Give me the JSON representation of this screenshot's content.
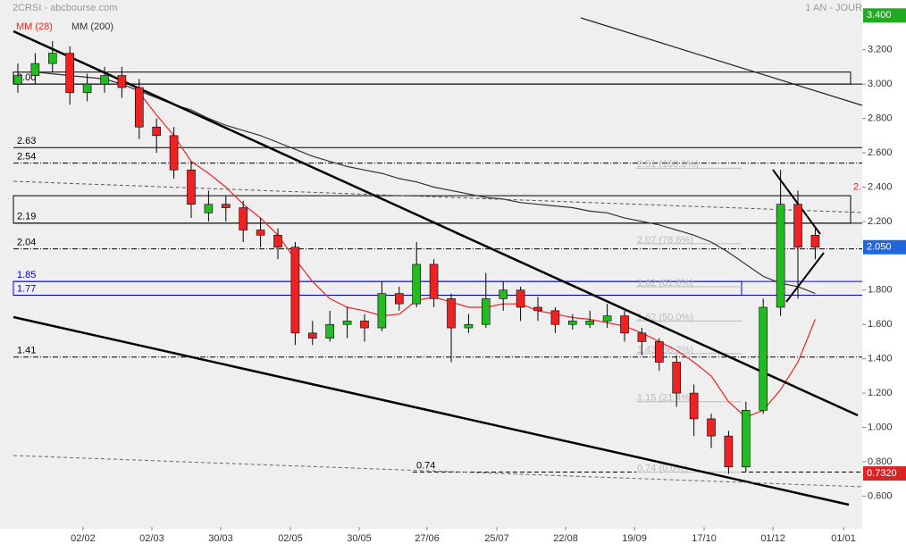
{
  "header": {
    "title": "2CRSI - abcbourse.com",
    "period": "1 AN - JOUR"
  },
  "chart_data": {
    "type": "candlestick",
    "xlim": [
      -1.03,
      48.71
    ],
    "ylim": [
      0.42,
      3.49
    ],
    "xticks": [
      {
        "value": 3.76,
        "label": "02/02"
      },
      {
        "value": 7.73,
        "label": "02/03"
      },
      {
        "value": 11.7,
        "label": "30/03"
      },
      {
        "value": 15.72,
        "label": "02/05"
      },
      {
        "value": 19.69,
        "label": "30/05"
      },
      {
        "value": 23.61,
        "label": "27/06"
      },
      {
        "value": 27.63,
        "label": "25/07"
      },
      {
        "value": 31.6,
        "label": "22/08"
      },
      {
        "value": 35.57,
        "label": "19/09"
      },
      {
        "value": 39.59,
        "label": "17/10"
      },
      {
        "value": 43.56,
        "label": "01/12"
      },
      {
        "value": 47.63,
        "label": "01/01"
      }
    ],
    "yticks": [
      {
        "value": 3.2,
        "label": "3.200"
      },
      {
        "value": 3.0,
        "label": "3.000"
      },
      {
        "value": 2.8,
        "label": "2.800"
      },
      {
        "value": 2.6,
        "label": "2.600"
      },
      {
        "value": 2.4,
        "label": "2.400"
      },
      {
        "value": 2.2,
        "label": "2.200"
      },
      {
        "value": 1.8,
        "label": "1.800"
      },
      {
        "value": 1.6,
        "label": "1.600"
      },
      {
        "value": 1.4,
        "label": "1.400"
      },
      {
        "value": 1.2,
        "label": "1.200"
      },
      {
        "value": 1.0,
        "label": "1.000"
      },
      {
        "value": 0.8,
        "label": "0.800"
      },
      {
        "value": 0.6,
        "label": "0.600"
      }
    ],
    "up_color": "#22bb22",
    "down_color": "#ee2222",
    "open": [
      3.0,
      3.05,
      3.12,
      3.18,
      2.95,
      3.0,
      3.05,
      2.98,
      2.75,
      2.7,
      2.5,
      2.25,
      2.3,
      2.28,
      2.15,
      2.12,
      2.05,
      1.55,
      1.52,
      1.6,
      1.62,
      1.58,
      1.78,
      1.72,
      1.95,
      1.75,
      1.58,
      1.6,
      1.75,
      1.8,
      1.7,
      1.68,
      1.6,
      1.6,
      1.62,
      1.65,
      1.55,
      1.5,
      1.38,
      1.2,
      1.05,
      0.95,
      0.77,
      1.1,
      1.7,
      2.3,
      2.12
    ],
    "high": [
      3.12,
      3.18,
      3.25,
      3.22,
      3.06,
      3.1,
      3.1,
      3.03,
      2.8,
      2.75,
      2.55,
      2.38,
      2.35,
      2.32,
      2.22,
      2.16,
      2.08,
      1.62,
      1.68,
      1.7,
      1.66,
      1.85,
      1.82,
      2.08,
      1.98,
      1.78,
      1.66,
      1.9,
      1.85,
      1.82,
      1.76,
      1.7,
      1.66,
      1.68,
      1.72,
      1.68,
      1.58,
      1.52,
      1.42,
      1.25,
      1.08,
      0.98,
      1.15,
      1.75,
      2.5,
      2.38,
      2.16
    ],
    "low": [
      2.95,
      3.0,
      3.07,
      2.88,
      2.9,
      2.95,
      2.92,
      2.68,
      2.6,
      2.45,
      2.22,
      2.2,
      2.2,
      2.08,
      2.05,
      1.98,
      1.48,
      1.48,
      1.5,
      1.52,
      1.5,
      1.56,
      1.68,
      1.7,
      1.7,
      1.38,
      1.55,
      1.58,
      1.68,
      1.62,
      1.62,
      1.55,
      1.57,
      1.58,
      1.58,
      1.5,
      1.42,
      1.33,
      1.12,
      0.95,
      0.88,
      0.73,
      0.74,
      1.08,
      1.65,
      1.75,
      1.98
    ],
    "close": [
      3.05,
      3.12,
      3.18,
      2.95,
      3.0,
      3.05,
      2.98,
      2.75,
      2.7,
      2.5,
      2.3,
      2.3,
      2.28,
      2.15,
      2.12,
      2.05,
      1.55,
      1.52,
      1.6,
      1.62,
      1.58,
      1.78,
      1.72,
      1.95,
      1.75,
      1.58,
      1.6,
      1.75,
      1.8,
      1.7,
      1.68,
      1.6,
      1.62,
      1.62,
      1.65,
      1.55,
      1.5,
      1.38,
      1.2,
      1.05,
      0.95,
      0.77,
      1.1,
      1.7,
      2.3,
      2.05,
      2.05
    ],
    "series": [
      {
        "name": "MM (28)",
        "color": "#ee2222",
        "values": [
          null,
          null,
          null,
          null,
          null,
          null,
          null,
          2.95,
          2.82,
          2.7,
          2.55,
          2.48,
          2.4,
          2.3,
          2.22,
          2.12,
          1.98,
          1.85,
          1.75,
          1.7,
          1.68,
          1.65,
          1.66,
          1.74,
          1.76,
          1.73,
          1.7,
          1.7,
          1.72,
          1.72,
          1.68,
          1.66,
          1.64,
          1.63,
          1.61,
          1.59,
          1.55,
          1.5,
          1.45,
          1.38,
          1.3,
          1.15,
          1.06,
          1.1,
          1.22,
          1.38,
          1.63
        ]
      },
      {
        "name": "MM (200)",
        "color": "#333333",
        "values": [
          3.07,
          3.07,
          3.06,
          3.05,
          3.04,
          3.03,
          3.0,
          2.96,
          2.92,
          2.88,
          2.85,
          2.8,
          2.76,
          2.73,
          2.7,
          2.66,
          2.62,
          2.58,
          2.55,
          2.52,
          2.5,
          2.48,
          2.45,
          2.43,
          2.4,
          2.38,
          2.36,
          2.34,
          2.33,
          2.31,
          2.3,
          2.29,
          2.28,
          2.26,
          2.25,
          2.22,
          2.2,
          2.18,
          2.15,
          2.12,
          2.08,
          2.02,
          1.95,
          1.88,
          1.84,
          1.82,
          1.78
        ]
      }
    ],
    "levels": [
      {
        "value": 3.0,
        "label": "3.00",
        "color": "#000000",
        "dash": "solid"
      },
      {
        "value": 2.63,
        "label": "2.63",
        "color": "#000000",
        "dash": "solid"
      },
      {
        "value": 2.54,
        "label": "2.54",
        "color": "#000000",
        "dash": "dashdot"
      },
      {
        "value": 2.19,
        "label": "2.19",
        "color": "#000000",
        "dash": "solid"
      },
      {
        "value": 2.04,
        "label": "2.04",
        "color": "#000000",
        "dash": "dashdot"
      },
      {
        "value": 1.85,
        "label": "1.85",
        "color": "#0000cc",
        "dash": "solid"
      },
      {
        "value": 1.77,
        "label": "1.77",
        "color": "#0000cc",
        "dash": "solid"
      },
      {
        "value": 1.41,
        "label": "1.41",
        "color": "#000000",
        "dash": "dashdot"
      },
      {
        "value": 0.74,
        "label": "0.74",
        "color": "#000000",
        "dash": "dashed"
      }
    ],
    "boxes": [
      [
        3.07,
        3.0
      ],
      [
        2.35,
        2.19
      ],
      [
        1.85,
        1.77
      ]
    ],
    "fib_labels": [
      {
        "value": 2.51,
        "label": "2.51 (100.0%)"
      },
      {
        "value": 2.07,
        "label": "2.07 (78.6%)"
      },
      {
        "value": 1.82,
        "label": "1.82 (61.8%)"
      },
      {
        "value": 1.62,
        "label": "1.62 (50.0%)"
      },
      {
        "value": 1.43,
        "label": "1.43 (38.2%)"
      },
      {
        "value": 1.15,
        "label": "1.15 (21.4%)"
      },
      {
        "value": 0.74,
        "label": "0.74 (0.0%)"
      }
    ],
    "tags": [
      {
        "value": 3.4,
        "label": "3.400",
        "color": "#22aa22"
      },
      {
        "value": 2.05,
        "label": "2.050",
        "color": "#2266dd"
      },
      {
        "value": 0.732,
        "label": "0.7320",
        "color": "#dd2222"
      }
    ],
    "annotation": {
      "value": 2.4,
      "label": "2."
    }
  }
}
